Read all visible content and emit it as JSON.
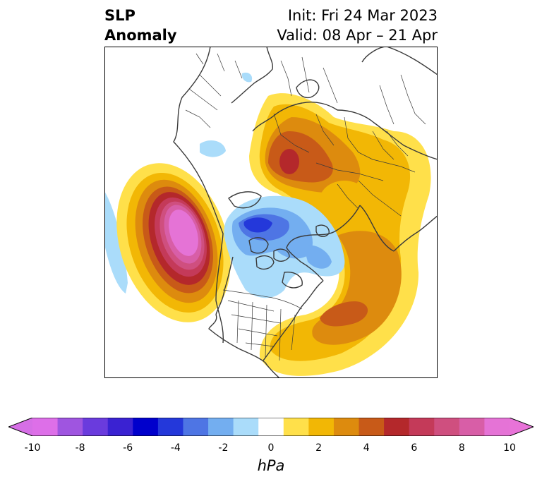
{
  "title": {
    "left_line1": "SLP",
    "left_line2": "Anomaly",
    "right_line1": "Init: Fri 24 Mar 2023",
    "right_line2": "Valid: 08 Apr – 21 Apr"
  },
  "colorbar": {
    "unit": "hPa",
    "ticks": [
      "-10",
      "-8",
      "-6",
      "-4",
      "-2",
      "0",
      "2",
      "4",
      "6",
      "8",
      "10"
    ],
    "levels": [
      -10,
      -9,
      -8,
      -7,
      -6,
      -5,
      -4,
      -3,
      -2,
      -1,
      1,
      2,
      3,
      4,
      5,
      6,
      7,
      8,
      9,
      10
    ],
    "colors": [
      "#dd6fe8",
      "#9f55e0",
      "#6a3bdd",
      "#3a22d2",
      "#0000cc",
      "#2438da",
      "#4e75e4",
      "#73aef0",
      "#aadcfa",
      "#ffffff",
      "#ffe04a",
      "#f2b705",
      "#dd8b0e",
      "#c85a18",
      "#b4282b",
      "#c43a59",
      "#cf4f7f",
      "#d85ea7",
      "#e573d6"
    ],
    "extend_min_color": "#d66fe6",
    "extend_max_color": "#e873d8"
  },
  "map": {
    "projection": "polar stereographic (North Pole)",
    "features": [
      "coastlines",
      "country borders",
      "US state borders",
      "Canadian province borders"
    ]
  }
}
